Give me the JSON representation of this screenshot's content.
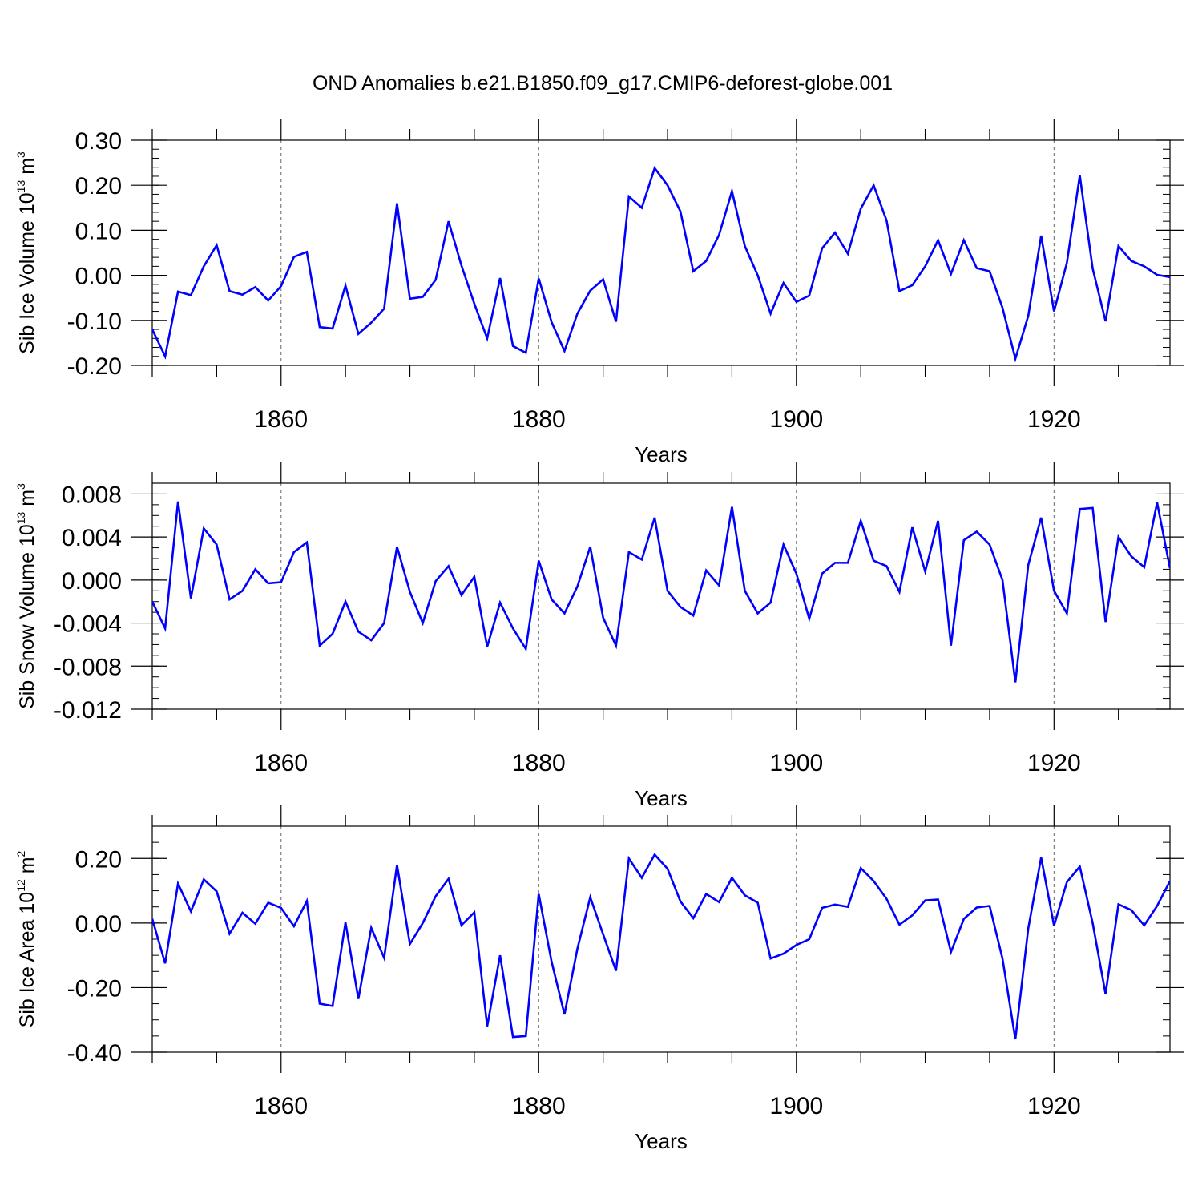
{
  "title": "OND Anomalies b.e21.B1850.f09_g17.CMIP6-deforest-globe.001",
  "colors": {
    "line": "#0000ff",
    "axis": "#000000",
    "grid": "#666666",
    "background": "#ffffff"
  },
  "chart_data": [
    {
      "type": "line",
      "ylabel": {
        "text": "Sib Ice Volume 10",
        "exp": "13",
        "unit": " m",
        "unit_exp": "3"
      },
      "xlabel": "Years",
      "xlim": [
        1850,
        1929
      ],
      "ylim": [
        -0.2,
        0.3
      ],
      "yticks": [
        -0.2,
        -0.1,
        0.0,
        0.1,
        0.2,
        0.3
      ],
      "ytick_labels": [
        "-0.20",
        "-0.10",
        "0.00",
        "0.10",
        "0.20",
        "0.30"
      ],
      "yminor_step": 0.02,
      "xticks": [
        1860,
        1880,
        1900,
        1920
      ],
      "xtick_labels": [
        "1860",
        "1880",
        "1900",
        "1920"
      ],
      "xminor_step": 5,
      "series": [
        {
          "name": "Sib Ice Volume",
          "x_start": 1850,
          "values": [
            -0.12,
            -0.18,
            -0.036,
            -0.044,
            0.02,
            0.067,
            -0.035,
            -0.043,
            -0.026,
            -0.056,
            -0.024,
            0.041,
            0.052,
            -0.115,
            -0.118,
            -0.023,
            -0.13,
            -0.105,
            -0.074,
            0.16,
            -0.052,
            -0.048,
            -0.01,
            0.12,
            0.022,
            -0.063,
            -0.14,
            -0.006,
            -0.157,
            -0.172,
            -0.007,
            -0.104,
            -0.168,
            -0.085,
            -0.034,
            -0.009,
            -0.103,
            0.175,
            0.15,
            0.238,
            0.2,
            0.142,
            0.009,
            0.032,
            0.09,
            0.187,
            0.065,
            0.0,
            -0.085,
            -0.017,
            -0.059,
            -0.045,
            0.06,
            0.095,
            0.048,
            0.148,
            0.2,
            0.122,
            -0.035,
            -0.022,
            0.02,
            0.078,
            0.003,
            0.078,
            0.016,
            0.009,
            -0.072,
            -0.185,
            -0.09,
            0.088,
            -0.08,
            0.028,
            0.222,
            0.015,
            -0.102,
            0.065,
            0.032,
            0.02,
            0.001,
            -0.004
          ]
        }
      ]
    },
    {
      "type": "line",
      "ylabel": {
        "text": "Sib Snow Volume 10",
        "exp": "13",
        "unit": " m",
        "unit_exp": "3"
      },
      "xlabel": "Years",
      "xlim": [
        1850,
        1929
      ],
      "ylim": [
        -0.012,
        0.009
      ],
      "yticks": [
        -0.012,
        -0.008,
        -0.004,
        0.0,
        0.004,
        0.008
      ],
      "ytick_labels": [
        "-0.012",
        "-0.008",
        "-0.004",
        "0.000",
        "0.004",
        "0.008"
      ],
      "yminor_step": 0.001,
      "xticks": [
        1860,
        1880,
        1900,
        1920
      ],
      "xtick_labels": [
        "1860",
        "1880",
        "1900",
        "1920"
      ],
      "xminor_step": 5,
      "series": [
        {
          "name": "Sib Snow Volume",
          "x_start": 1850,
          "values": [
            -0.002,
            -0.0045,
            0.0073,
            -0.0017,
            0.0048,
            0.0033,
            -0.0018,
            -0.001,
            0.001,
            -0.0003,
            -0.0002,
            0.0026,
            0.0035,
            -0.0061,
            -0.005,
            -0.002,
            -0.0048,
            -0.0056,
            -0.004,
            0.0031,
            -0.0011,
            -0.004,
            -0.0001,
            0.0013,
            -0.0014,
            0.0003,
            -0.0062,
            -0.0021,
            -0.0045,
            -0.0064,
            0.0018,
            -0.0018,
            -0.0031,
            -0.0006,
            0.0031,
            -0.0035,
            -0.0061,
            0.0026,
            0.0019,
            0.0058,
            -0.001,
            -0.0025,
            -0.0033,
            0.0009,
            -0.0005,
            0.0068,
            -0.001,
            -0.0031,
            -0.0021,
            0.0033,
            0.0006,
            -0.0036,
            0.0006,
            0.0016,
            0.0016,
            0.0055,
            0.0018,
            0.0013,
            -0.0011,
            0.0049,
            0.0008,
            0.0055,
            -0.0061,
            0.0037,
            0.0045,
            0.0033,
            0.0,
            -0.0095,
            0.0014,
            0.0058,
            -0.001,
            -0.0031,
            0.0066,
            0.0067,
            -0.0039,
            0.004,
            0.0022,
            0.0012,
            0.0072,
            0.0011
          ]
        }
      ]
    },
    {
      "type": "line",
      "ylabel": {
        "text": "Sib Ice Area 10",
        "exp": "12",
        "unit": " m",
        "unit_exp": "2"
      },
      "xlabel": "Years",
      "xlim": [
        1850,
        1929
      ],
      "ylim": [
        -0.4,
        0.3
      ],
      "yticks": [
        -0.4,
        -0.2,
        0.0,
        0.2
      ],
      "ytick_labels": [
        "-0.40",
        "-0.20",
        "0.00",
        "0.20"
      ],
      "yminor_step": 0.05,
      "xticks": [
        1860,
        1880,
        1900,
        1920
      ],
      "xtick_labels": [
        "1860",
        "1880",
        "1900",
        "1920"
      ],
      "xminor_step": 5,
      "series": [
        {
          "name": "Sib Ice Area",
          "x_start": 1850,
          "values": [
            0.013,
            -0.125,
            0.122,
            0.036,
            0.135,
            0.098,
            -0.033,
            0.032,
            -0.002,
            0.063,
            0.047,
            -0.01,
            0.068,
            -0.25,
            -0.257,
            0.002,
            -0.235,
            -0.015,
            -0.108,
            0.18,
            -0.065,
            0.0,
            0.083,
            0.137,
            -0.007,
            0.033,
            -0.32,
            -0.1,
            -0.353,
            -0.35,
            0.09,
            -0.12,
            -0.283,
            -0.08,
            0.08,
            -0.035,
            -0.148,
            0.2,
            0.14,
            0.212,
            0.168,
            0.067,
            0.015,
            0.09,
            0.065,
            0.14,
            0.086,
            0.063,
            -0.11,
            -0.095,
            -0.068,
            -0.05,
            0.047,
            0.057,
            0.05,
            0.17,
            0.13,
            0.075,
            -0.005,
            0.024,
            0.07,
            0.073,
            -0.09,
            0.013,
            0.048,
            0.053,
            -0.11,
            -0.36,
            -0.017,
            0.203,
            -0.008,
            0.127,
            0.175,
            0.0,
            -0.22,
            0.058,
            0.04,
            -0.007,
            0.053,
            0.13
          ]
        }
      ]
    }
  ]
}
